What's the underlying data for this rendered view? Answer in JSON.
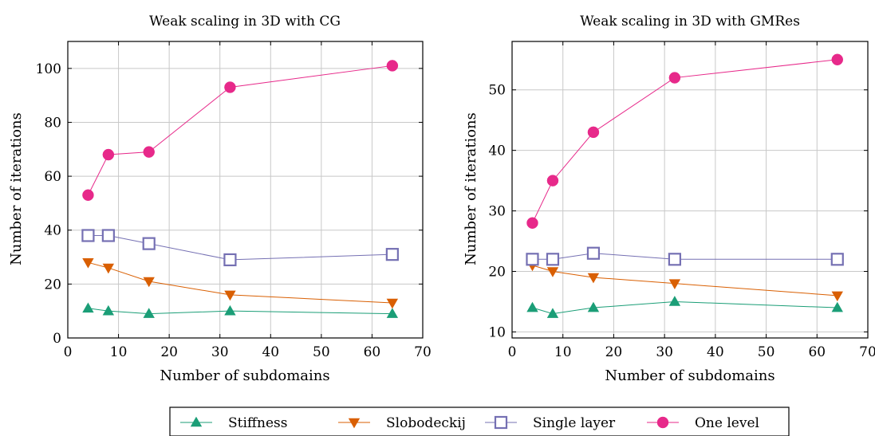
{
  "chart_data": [
    {
      "type": "line",
      "title": "Weak scaling in 3D with CG",
      "xlabel": "Number of subdomains",
      "ylabel": "Number of iterations",
      "xlim": [
        0,
        70
      ],
      "ylim": [
        0,
        110
      ],
      "xticks": [
        0,
        10,
        20,
        30,
        40,
        50,
        60,
        70
      ],
      "yticks": [
        0,
        20,
        40,
        60,
        80,
        100
      ],
      "grid": true,
      "x": [
        4,
        8,
        16,
        32,
        64
      ],
      "series": [
        {
          "name": "Stiffness",
          "values": [
            11,
            10,
            9,
            10,
            9
          ]
        },
        {
          "name": "Slobodeckij",
          "values": [
            28,
            26,
            21,
            16,
            13
          ]
        },
        {
          "name": "Single layer",
          "values": [
            38,
            38,
            35,
            29,
            31
          ]
        },
        {
          "name": "One level",
          "values": [
            53,
            68,
            69,
            93,
            101
          ]
        }
      ]
    },
    {
      "type": "line",
      "title": "Weak scaling in 3D with GMRes",
      "xlabel": "Number of subdomains",
      "ylabel": "Number of iterations",
      "xlim": [
        0,
        70
      ],
      "ylim": [
        9,
        58
      ],
      "xticks": [
        0,
        10,
        20,
        30,
        40,
        50,
        60,
        70
      ],
      "yticks": [
        10,
        20,
        30,
        40,
        50
      ],
      "grid": true,
      "x": [
        4,
        8,
        16,
        32,
        64
      ],
      "series": [
        {
          "name": "Stiffness",
          "values": [
            14,
            13,
            14,
            15,
            14
          ]
        },
        {
          "name": "Slobodeckij",
          "values": [
            21,
            20,
            19,
            18,
            16
          ]
        },
        {
          "name": "Single layer",
          "values": [
            22,
            22,
            23,
            22,
            22
          ]
        },
        {
          "name": "One level",
          "values": [
            28,
            35,
            43,
            52,
            55
          ]
        }
      ]
    }
  ],
  "legend": {
    "placement": "bottom",
    "entries": [
      {
        "name": "Stiffness",
        "marker": "triangle-up",
        "color": "#1b9e77"
      },
      {
        "name": "Slobodeckij",
        "marker": "triangle-down",
        "color": "#d95f02"
      },
      {
        "name": "Single layer",
        "marker": "square-open",
        "color": "#7570b3"
      },
      {
        "name": "One level",
        "marker": "circle",
        "color": "#e7298a"
      }
    ]
  }
}
